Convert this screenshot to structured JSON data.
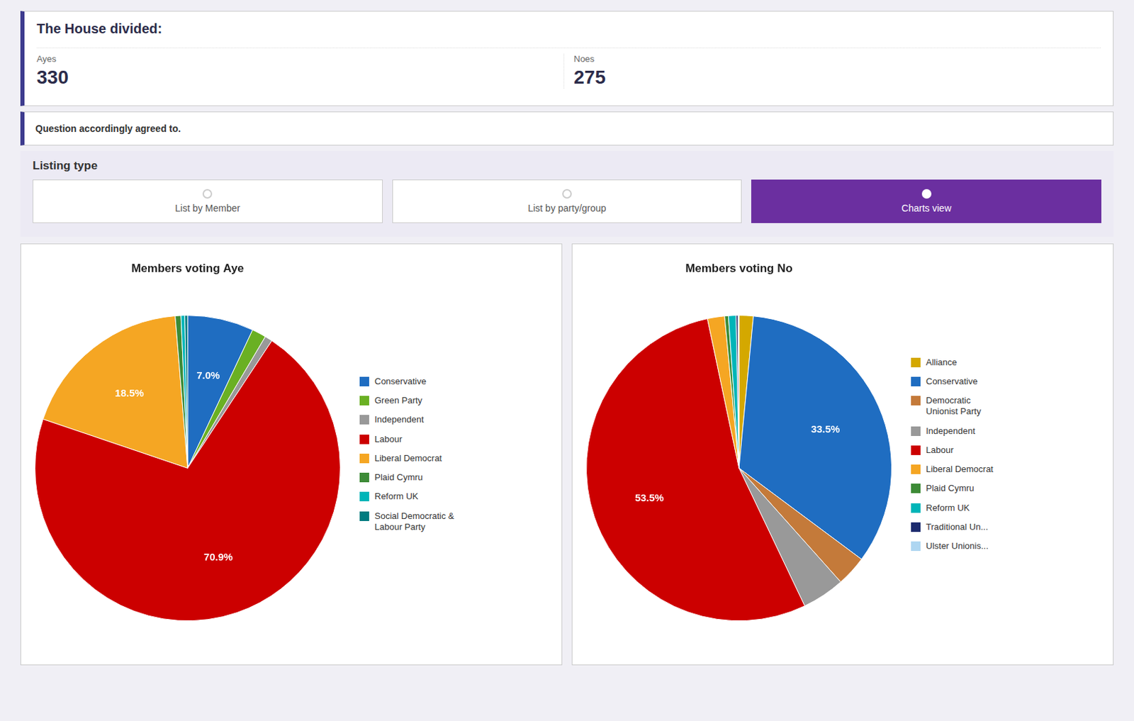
{
  "title": "The House divided:",
  "votes": [
    {
      "label": "Ayes",
      "value": 330
    },
    {
      "label": "Noes",
      "value": 275
    }
  ],
  "annotations": [
    "Question accordingly agreed to."
  ],
  "tabs": {
    "title": "Listing type",
    "labels": [
      "List by Member",
      "List by party/group",
      "Charts view"
    ],
    "active": "Charts view",
    "color": "#6B2FA0"
  },
  "chart_data": [
    {
      "type": "pie",
      "title": "Members voting Aye",
      "categories": [
        "Conservative",
        "Green Party",
        "Independent",
        "Labour",
        "Liberal Democrat",
        "Plaid Cymru",
        "Reform UK",
        "Social Democratic &\nLabour Party"
      ],
      "values": [
        7.0,
        1.5,
        0.8,
        70.9,
        18.5,
        0.6,
        0.4,
        0.3
      ],
      "value_labels": [
        "7.0%",
        null,
        null,
        "70.9%",
        "18.5%",
        null,
        null,
        null
      ],
      "colors": [
        "#1F6DC1",
        "#6AB023",
        "#999999",
        "#CC0000",
        "#F5A623",
        "#3D8B37",
        "#00B5B8",
        "#007B7F"
      ],
      "data_labels": true,
      "legend": "right"
    },
    {
      "type": "pie",
      "title": "Members voting No",
      "categories": [
        "Alliance",
        "Conservative",
        "Democratic\nUnionist Party",
        "Independent",
        "Labour",
        "Liberal Democrat",
        "Plaid Cymru",
        "Reform UK",
        "Traditional Un...",
        "Ulster Unionis..."
      ],
      "values": [
        1.5,
        33.5,
        3.2,
        4.5,
        53.5,
        1.8,
        0.4,
        0.8,
        0.2,
        0.1
      ],
      "value_labels": [
        null,
        "33.5%",
        null,
        null,
        "53.5%",
        null,
        null,
        null,
        null,
        null
      ],
      "colors": [
        "#D4A800",
        "#1F6DC1",
        "#C47A3A",
        "#999999",
        "#CC0000",
        "#F5A623",
        "#3D8B37",
        "#00B5B8",
        "#1C2B6E",
        "#AED6F1"
      ],
      "data_labels": true,
      "legend": "right"
    }
  ]
}
